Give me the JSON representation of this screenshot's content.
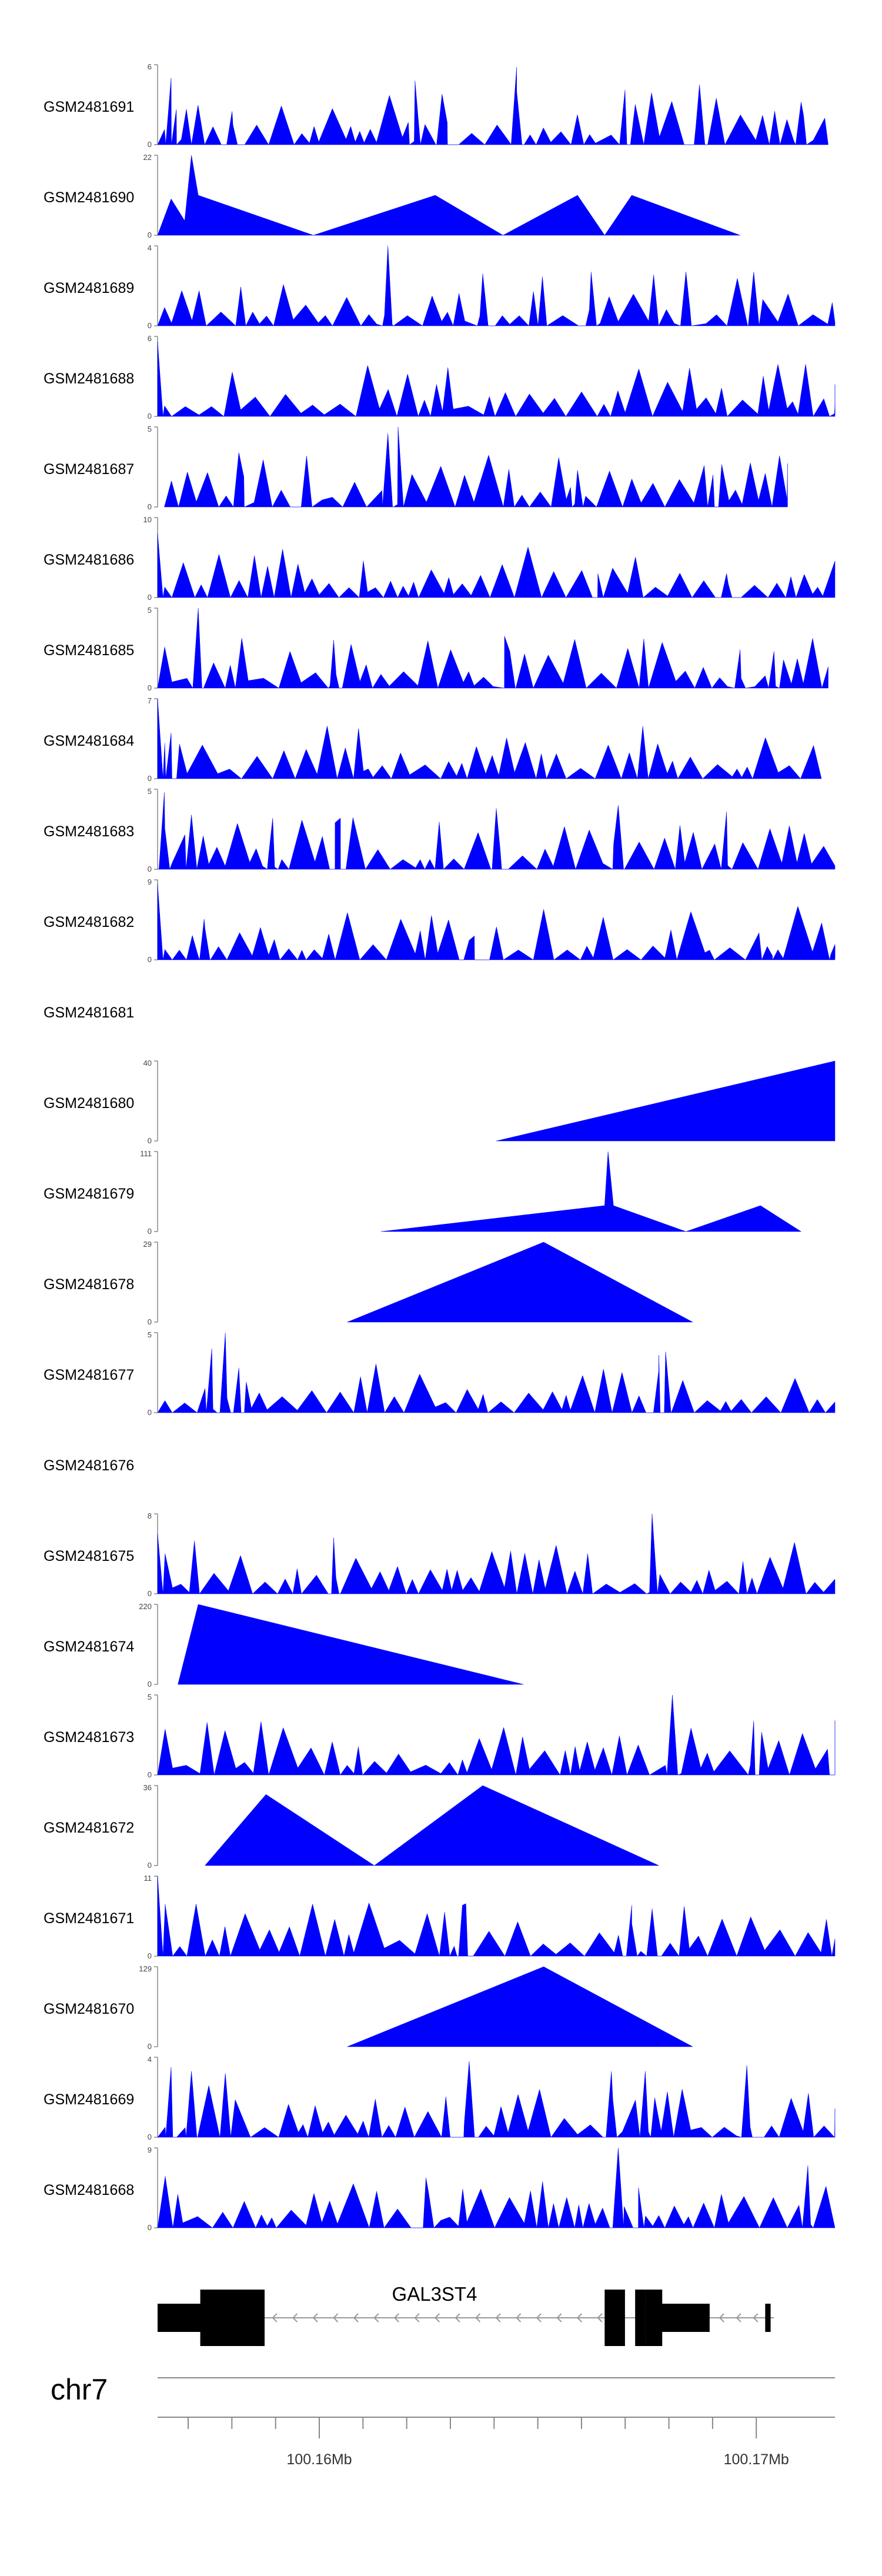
{
  "chart_data": {
    "type": "area",
    "title": "",
    "chromosome": "chr7",
    "gene": {
      "name": "GAL3ST4",
      "strand": "-"
    },
    "x_axis": {
      "unit": "Mb",
      "domain": [
        100.1563,
        100.1718
      ],
      "ticks": [
        100.157,
        100.158,
        100.159,
        100.16,
        100.161,
        100.162,
        100.163,
        100.164,
        100.165,
        100.166,
        100.167,
        100.168,
        100.169,
        100.17
      ],
      "tick_labels": [
        {
          "value": 100.16,
          "label": "100.16Mb"
        },
        {
          "value": 100.17,
          "label": "100.17Mb"
        }
      ]
    },
    "tracks": [
      {
        "name": "GSM2481691",
        "ymax": "6",
        "max": 6,
        "profile": "noisy",
        "seed": 11,
        "start": 0.0,
        "end": 0.99,
        "peaks": [
          [
            0.02,
            5
          ],
          [
            0.11,
            2.5
          ],
          [
            0.38,
            4.8
          ],
          [
            0.42,
            3.8
          ],
          [
            0.53,
            5.8
          ],
          [
            0.69,
            4.1
          ],
          [
            0.8,
            4.5
          ],
          [
            0.95,
            3.2
          ]
        ]
      },
      {
        "name": "GSM2481690",
        "ymax": "22",
        "max": 22,
        "profile": "tri",
        "points": [
          [
            0.0,
            0
          ],
          [
            0.02,
            10
          ],
          [
            0.04,
            4
          ],
          [
            0.05,
            22
          ],
          [
            0.06,
            11
          ],
          [
            0.23,
            0
          ],
          [
            0.41,
            11
          ],
          [
            0.51,
            0
          ],
          [
            0.62,
            11
          ],
          [
            0.66,
            0
          ],
          [
            0.7,
            11
          ],
          [
            0.86,
            0
          ]
        ]
      },
      {
        "name": "GSM2481689",
        "ymax": "4",
        "max": 4,
        "profile": "noisy",
        "seed": 23,
        "start": 0.0,
        "end": 1.0,
        "peaks": [
          [
            0.34,
            4
          ],
          [
            0.48,
            2.6
          ],
          [
            0.64,
            2.7
          ],
          [
            0.78,
            2.7
          ],
          [
            0.88,
            2.7
          ]
        ]
      },
      {
        "name": "GSM2481688",
        "ymax": "6",
        "max": 6,
        "profile": "noisy",
        "seed": 31,
        "start": 0.0,
        "end": 1.0,
        "peaks": [
          [
            0.0,
            5.6
          ],
          [
            1.0,
            2.4
          ]
        ]
      },
      {
        "name": "GSM2481687",
        "ymax": "5",
        "max": 5,
        "profile": "noisy",
        "seed": 47,
        "start": 0.01,
        "end": 0.93,
        "peaks": [
          [
            0.12,
            3.4
          ],
          [
            0.22,
            3.2
          ],
          [
            0.34,
            4.6
          ],
          [
            0.355,
            5
          ],
          [
            0.62,
            2.3
          ],
          [
            0.82,
            2
          ]
        ]
      },
      {
        "name": "GSM2481686",
        "ymax": "10",
        "max": 10,
        "profile": "noisy",
        "seed": 53,
        "start": 0.0,
        "end": 1.0,
        "peaks": [
          [
            0.0,
            8
          ],
          [
            0.65,
            3
          ],
          [
            0.84,
            3
          ]
        ]
      },
      {
        "name": "GSM2481685",
        "ymax": "5",
        "max": 5,
        "profile": "noisy",
        "seed": 61,
        "start": 0.0,
        "end": 0.99,
        "peaks": [
          [
            0.06,
            5
          ],
          [
            0.26,
            3
          ],
          [
            0.52,
            2.3
          ],
          [
            0.86,
            2.4
          ],
          [
            0.91,
            2.3
          ]
        ]
      },
      {
        "name": "GSM2481684",
        "ymax": "7",
        "max": 7,
        "profile": "noisy",
        "seed": 71,
        "start": 0.0,
        "end": 0.98,
        "peaks": [
          [
            0.0,
            7
          ],
          [
            0.02,
            4
          ]
        ]
      },
      {
        "name": "GSM2481683",
        "ymax": "5",
        "max": 5,
        "profile": "noisy",
        "seed": 83,
        "start": 0.0,
        "end": 1.0,
        "peaks": [
          [
            0.01,
            4.8
          ],
          [
            0.05,
            3.4
          ],
          [
            0.17,
            3.2
          ],
          [
            0.27,
            3.2
          ],
          [
            0.5,
            3.8
          ],
          [
            0.68,
            4
          ],
          [
            0.84,
            3.6
          ]
        ]
      },
      {
        "name": "GSM2481682",
        "ymax": "9",
        "max": 9,
        "profile": "noisy",
        "seed": 97,
        "start": 0.0,
        "end": 1.0,
        "peaks": [
          [
            0.0,
            8.5
          ],
          [
            0.07,
            3.5
          ],
          [
            0.46,
            2.2
          ],
          [
            0.9,
            1.5
          ],
          [
            1.0,
            1.5
          ]
        ]
      },
      {
        "name": "GSM2481681",
        "ymax": "",
        "max": 1,
        "profile": "empty"
      },
      {
        "name": "GSM2481680",
        "ymax": "40",
        "max": 40,
        "profile": "tri",
        "points": [
          [
            0.5,
            0
          ],
          [
            1.0,
            40
          ],
          [
            1.0,
            0
          ]
        ]
      },
      {
        "name": "GSM2481679",
        "ymax": "111",
        "max": 111,
        "profile": "tri",
        "points": [
          [
            0.33,
            0
          ],
          [
            0.66,
            36
          ],
          [
            0.665,
            111
          ],
          [
            0.673,
            36
          ],
          [
            0.78,
            0
          ],
          [
            0.89,
            36
          ],
          [
            0.95,
            0
          ]
        ]
      },
      {
        "name": "GSM2481678",
        "ymax": "29",
        "max": 29,
        "profile": "tri",
        "points": [
          [
            0.28,
            0
          ],
          [
            0.57,
            29
          ],
          [
            0.79,
            0
          ]
        ]
      },
      {
        "name": "GSM2481677",
        "ymax": "5",
        "max": 5,
        "profile": "noisy",
        "seed": 109,
        "start": 0.0,
        "end": 1.0,
        "peaks": [
          [
            0.08,
            4
          ],
          [
            0.1,
            5
          ],
          [
            0.12,
            2.8
          ],
          [
            0.74,
            3.6
          ],
          [
            0.75,
            3.8
          ]
        ]
      },
      {
        "name": "GSM2481676",
        "ymax": "",
        "max": 1,
        "profile": "empty"
      },
      {
        "name": "GSM2481675",
        "ymax": "8",
        "max": 8,
        "profile": "noisy",
        "seed": 127,
        "start": 0.0,
        "end": 1.0,
        "peaks": [
          [
            0.0,
            6
          ],
          [
            0.26,
            5.6
          ],
          [
            0.73,
            8
          ]
        ]
      },
      {
        "name": "GSM2481674",
        "ymax": "220",
        "max": 220,
        "profile": "tri",
        "points": [
          [
            0.03,
            0
          ],
          [
            0.06,
            220
          ],
          [
            0.54,
            0
          ]
        ]
      },
      {
        "name": "GSM2481673",
        "ymax": "5",
        "max": 5,
        "profile": "noisy",
        "seed": 139,
        "start": 0.0,
        "end": 1.0,
        "peaks": [
          [
            0.76,
            5
          ],
          [
            0.88,
            3.4
          ],
          [
            1.0,
            3.4
          ]
        ]
      },
      {
        "name": "GSM2481672",
        "ymax": "36",
        "max": 36,
        "profile": "tri",
        "points": [
          [
            0.07,
            0
          ],
          [
            0.16,
            32
          ],
          [
            0.32,
            0
          ],
          [
            0.48,
            36
          ],
          [
            0.74,
            0
          ]
        ]
      },
      {
        "name": "GSM2481671",
        "ymax": "11",
        "max": 11,
        "profile": "noisy",
        "seed": 151,
        "start": 0.0,
        "end": 1.0,
        "peaks": [
          [
            0.0,
            11
          ],
          [
            0.45,
            7
          ],
          [
            0.7,
            7
          ],
          [
            0.73,
            6.5
          ]
        ]
      },
      {
        "name": "GSM2481670",
        "ymax": "129",
        "max": 129,
        "profile": "tri",
        "points": [
          [
            0.28,
            0
          ],
          [
            0.57,
            129
          ],
          [
            0.79,
            0
          ]
        ]
      },
      {
        "name": "GSM2481669",
        "ymax": "4",
        "max": 4,
        "profile": "noisy",
        "seed": 163,
        "start": 0.0,
        "end": 1.0,
        "peaks": [
          [
            0.02,
            3.5
          ],
          [
            0.05,
            3.3
          ],
          [
            0.1,
            3.2
          ],
          [
            0.46,
            3.8
          ],
          [
            0.67,
            3.3
          ],
          [
            0.72,
            3.3
          ],
          [
            0.87,
            3.6
          ]
        ]
      },
      {
        "name": "GSM2481668",
        "ymax": "9",
        "max": 9,
        "profile": "noisy",
        "seed": 173,
        "start": 0.0,
        "end": 1.0,
        "peaks": [
          [
            0.4,
            4
          ],
          [
            0.68,
            9
          ],
          [
            0.71,
            4.5
          ],
          [
            0.96,
            7
          ]
        ]
      }
    ]
  }
}
